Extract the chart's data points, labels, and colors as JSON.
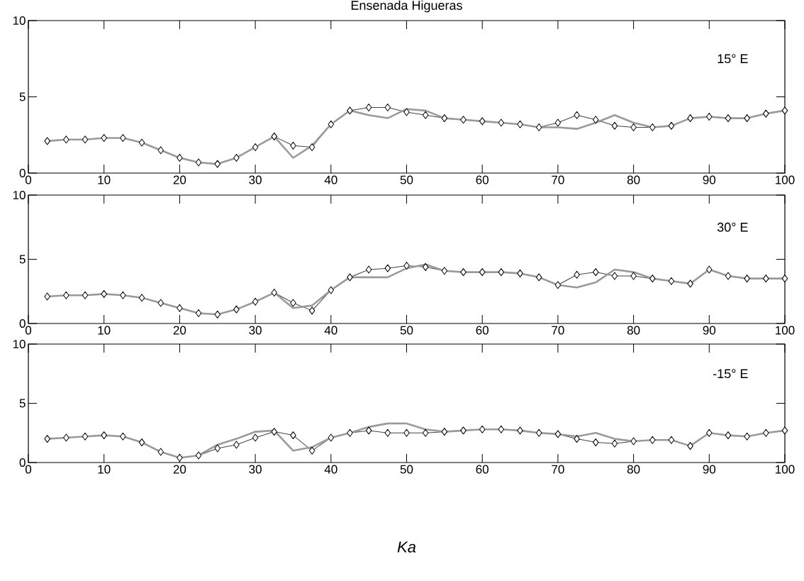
{
  "chart_data": [
    {
      "type": "line",
      "title": "Ensenada Higueras",
      "annotations": [
        "15° E"
      ],
      "x": [
        2.5,
        5,
        7.5,
        10,
        12.5,
        15,
        17.5,
        20,
        22.5,
        25,
        27.5,
        30,
        32.5,
        35,
        37.5,
        40,
        42.5,
        45,
        47.5,
        50,
        52.5,
        55,
        57.5,
        60,
        62.5,
        65,
        67.5,
        70,
        72.5,
        75,
        77.5,
        80,
        82.5,
        85,
        87.5,
        90,
        92.5,
        95,
        97.5,
        100
      ],
      "xlim": [
        0,
        100
      ],
      "ylim": [
        0,
        10
      ],
      "xticks": [
        0,
        10,
        20,
        30,
        40,
        50,
        60,
        70,
        80,
        90,
        100
      ],
      "yticks": [
        0,
        5,
        10
      ],
      "series": [
        {
          "color": "#444444",
          "marker": "diamond",
          "values": [
            2.1,
            2.2,
            2.2,
            2.3,
            2.3,
            2.0,
            1.5,
            1.0,
            0.7,
            0.6,
            1.0,
            1.7,
            2.4,
            1.8,
            1.7,
            3.2,
            4.1,
            4.3,
            4.3,
            4.0,
            3.8,
            3.6,
            3.5,
            3.4,
            3.3,
            3.2,
            3.0,
            3.3,
            3.8,
            3.5,
            3.1,
            3.0,
            3.0,
            3.1,
            3.6,
            3.7,
            3.6,
            3.6,
            3.9,
            4.1
          ]
        },
        {
          "color": "#9a9a9a",
          "marker": "none",
          "values": [
            2.1,
            2.2,
            2.2,
            2.3,
            2.3,
            2.0,
            1.5,
            1.0,
            0.7,
            0.6,
            1.0,
            1.7,
            2.4,
            1.0,
            1.8,
            3.2,
            4.1,
            3.8,
            3.6,
            4.2,
            4.1,
            3.6,
            3.5,
            3.4,
            3.3,
            3.2,
            3.0,
            3.0,
            2.9,
            3.3,
            3.8,
            3.3,
            3.0,
            3.1,
            3.6,
            3.7,
            3.6,
            3.6,
            3.9,
            4.1
          ]
        }
      ]
    },
    {
      "type": "line",
      "annotations": [
        "30° E"
      ],
      "x": [
        2.5,
        5,
        7.5,
        10,
        12.5,
        15,
        17.5,
        20,
        22.5,
        25,
        27.5,
        30,
        32.5,
        35,
        37.5,
        40,
        42.5,
        45,
        47.5,
        50,
        52.5,
        55,
        57.5,
        60,
        62.5,
        65,
        67.5,
        70,
        72.5,
        75,
        77.5,
        80,
        82.5,
        85,
        87.5,
        90,
        92.5,
        95,
        97.5,
        100
      ],
      "xlim": [
        0,
        100
      ],
      "ylim": [
        0,
        10
      ],
      "xticks": [
        0,
        10,
        20,
        30,
        40,
        50,
        60,
        70,
        80,
        90,
        100
      ],
      "yticks": [
        0,
        5,
        10
      ],
      "series": [
        {
          "color": "#444444",
          "marker": "diamond",
          "values": [
            2.1,
            2.2,
            2.2,
            2.3,
            2.2,
            2.0,
            1.6,
            1.2,
            0.8,
            0.7,
            1.1,
            1.7,
            2.4,
            1.6,
            1.0,
            2.6,
            3.6,
            4.2,
            4.3,
            4.5,
            4.4,
            4.1,
            4.0,
            4.0,
            4.0,
            3.9,
            3.6,
            3.0,
            3.8,
            4.0,
            3.7,
            3.7,
            3.5,
            3.3,
            3.1,
            4.2,
            3.7,
            3.5,
            3.5,
            3.5
          ]
        },
        {
          "color": "#9a9a9a",
          "marker": "none",
          "values": [
            2.1,
            2.2,
            2.2,
            2.3,
            2.2,
            2.0,
            1.6,
            1.2,
            0.8,
            0.7,
            1.1,
            1.7,
            2.4,
            1.2,
            1.4,
            2.6,
            3.6,
            3.6,
            3.6,
            4.3,
            4.6,
            4.1,
            4.0,
            4.0,
            4.0,
            3.9,
            3.6,
            3.0,
            2.8,
            3.2,
            4.2,
            4.0,
            3.5,
            3.3,
            3.1,
            4.2,
            3.7,
            3.5,
            3.5,
            3.5
          ]
        }
      ]
    },
    {
      "type": "line",
      "annotations": [
        "-15° E"
      ],
      "xlabel": "Ka",
      "x": [
        2.5,
        5,
        7.5,
        10,
        12.5,
        15,
        17.5,
        20,
        22.5,
        25,
        27.5,
        30,
        32.5,
        35,
        37.5,
        40,
        42.5,
        45,
        47.5,
        50,
        52.5,
        55,
        57.5,
        60,
        62.5,
        65,
        67.5,
        70,
        72.5,
        75,
        77.5,
        80,
        82.5,
        85,
        87.5,
        90,
        92.5,
        95,
        97.5,
        100
      ],
      "xlim": [
        0,
        100
      ],
      "ylim": [
        0,
        10
      ],
      "xticks": [
        0,
        10,
        20,
        30,
        40,
        50,
        60,
        70,
        80,
        90,
        100
      ],
      "yticks": [
        0,
        5,
        10
      ],
      "series": [
        {
          "color": "#444444",
          "marker": "diamond",
          "values": [
            2.0,
            2.1,
            2.2,
            2.3,
            2.2,
            1.7,
            0.9,
            0.4,
            0.6,
            1.2,
            1.5,
            2.1,
            2.6,
            2.3,
            1.0,
            2.1,
            2.5,
            2.7,
            2.5,
            2.5,
            2.5,
            2.6,
            2.7,
            2.8,
            2.8,
            2.7,
            2.5,
            2.4,
            2.0,
            1.7,
            1.6,
            1.8,
            1.9,
            1.9,
            1.4,
            2.5,
            2.3,
            2.2,
            2.5,
            2.7
          ]
        },
        {
          "color": "#9a9a9a",
          "marker": "none",
          "values": [
            2.0,
            2.1,
            2.2,
            2.3,
            2.2,
            1.7,
            0.9,
            0.4,
            0.6,
            1.5,
            2.0,
            2.6,
            2.7,
            1.0,
            1.3,
            2.1,
            2.5,
            3.0,
            3.3,
            3.3,
            2.8,
            2.6,
            2.7,
            2.8,
            2.8,
            2.7,
            2.5,
            2.4,
            2.2,
            2.5,
            2.0,
            1.8,
            1.9,
            1.9,
            1.4,
            2.5,
            2.3,
            2.2,
            2.5,
            2.7
          ]
        }
      ]
    }
  ]
}
